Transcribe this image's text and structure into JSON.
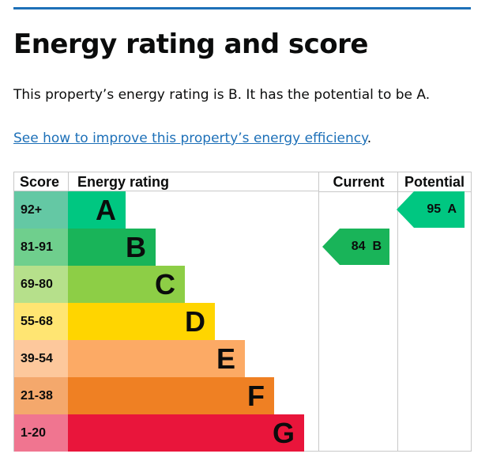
{
  "title": "Energy rating and score",
  "summary": "This property’s energy rating is B. It has the potential to be A.",
  "link": {
    "text": "See how to improve this property’s energy efficiency",
    "suffix": "."
  },
  "chart_data": {
    "type": "table",
    "headers": [
      "Score",
      "Energy rating",
      "Current",
      "Potential"
    ],
    "bands": [
      {
        "score": "92+",
        "letter": "A",
        "color": "#00c781",
        "light": "#64c8a4"
      },
      {
        "score": "81-91",
        "letter": "B",
        "color": "#19b459",
        "light": "#6fcf8d"
      },
      {
        "score": "69-80",
        "letter": "C",
        "color": "#8dce46",
        "light": "#b6e08b"
      },
      {
        "score": "55-68",
        "letter": "D",
        "color": "#ffd500",
        "light": "#ffe572"
      },
      {
        "score": "39-54",
        "letter": "E",
        "color": "#fcaa65",
        "light": "#fdc89c"
      },
      {
        "score": "21-38",
        "letter": "F",
        "color": "#ef8023",
        "light": "#f4a86c"
      },
      {
        "score": "1-20",
        "letter": "G",
        "color": "#e9153b",
        "light": "#f07590"
      }
    ],
    "current": {
      "score": 84,
      "letter": "B",
      "label": "84  B",
      "band_index": 1
    },
    "potential": {
      "score": 95,
      "letter": "A",
      "label": "95  A",
      "band_index": 0
    }
  }
}
